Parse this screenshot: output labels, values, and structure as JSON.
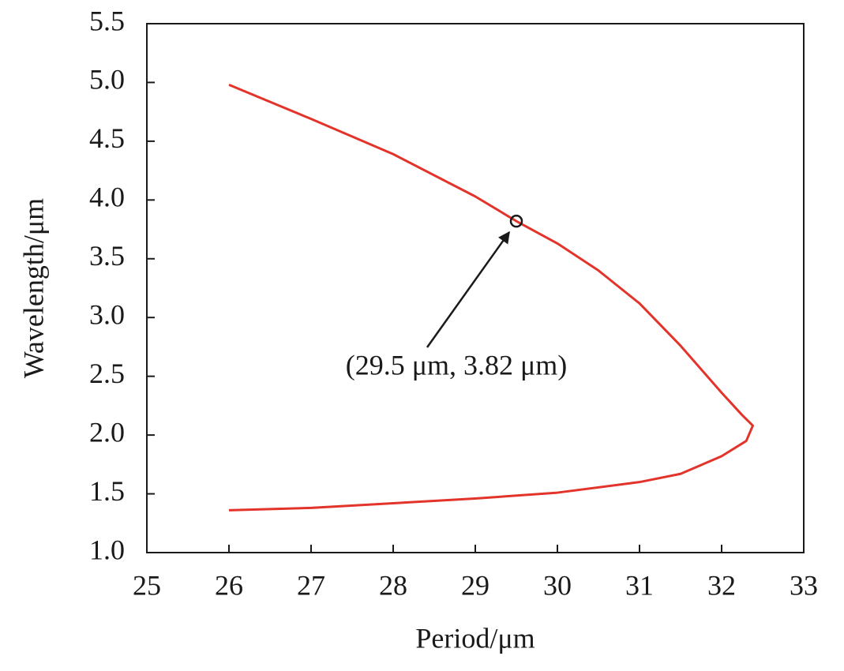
{
  "chart_data": {
    "type": "line",
    "xlabel": "Period/μm",
    "ylabel": "Wavelength/μm",
    "xlim": [
      25,
      33
    ],
    "xticks": [
      25,
      26,
      27,
      28,
      29,
      30,
      31,
      32,
      33
    ],
    "ylim": [
      1,
      5.5
    ],
    "yticks": [
      {
        "value": 1,
        "label": "1.0"
      },
      1.5,
      {
        "value": 2,
        "label": "2.0"
      },
      2.5,
      {
        "value": 3,
        "label": "3.0"
      },
      3.5,
      {
        "value": 4,
        "label": "4.0"
      },
      4.5,
      {
        "value": 5,
        "label": "5.0"
      },
      5.5
    ],
    "series": [
      {
        "color": "#e3342b",
        "x": [
          26,
          27,
          28,
          29,
          29.5,
          30,
          30.5,
          31,
          31.5,
          32,
          32.25,
          32.38,
          32.3,
          32,
          31.5,
          31,
          30,
          29,
          28,
          27,
          26
        ],
        "values": [
          4.98,
          4.69,
          4.39,
          4.03,
          3.82,
          3.63,
          3.4,
          3.12,
          2.76,
          2.36,
          2.17,
          2.08,
          1.95,
          1.82,
          1.67,
          1.6,
          1.51,
          1.46,
          1.42,
          1.38,
          1.36
        ]
      }
    ],
    "marker": {
      "x": 29.5,
      "y": 3.82
    },
    "annotation": "(29.5 μm, 3.82 μm)"
  }
}
